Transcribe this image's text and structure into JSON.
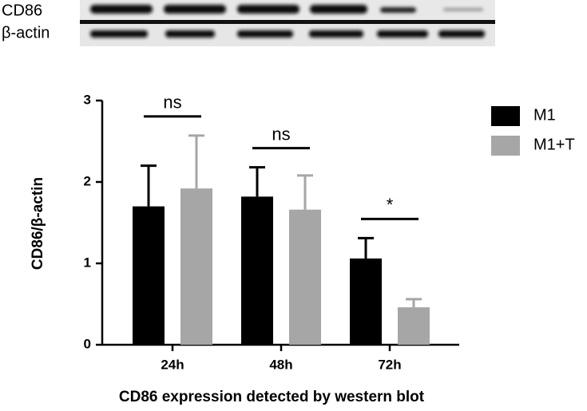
{
  "blot": {
    "rows": [
      "CD86",
      "β-actin"
    ]
  },
  "chart_data": {
    "type": "bar",
    "x_label": "CD86 expression detected by western blot",
    "y_label": "CD86/β-actin",
    "categories": [
      "24h",
      "48h",
      "72h"
    ],
    "series": [
      {
        "name": "M1",
        "color": "#000000",
        "values": [
          1.7,
          1.82,
          1.06
        ],
        "errors": [
          0.5,
          0.36,
          0.25
        ]
      },
      {
        "name": "M1+T",
        "color": "#a6a6a6",
        "values": [
          1.92,
          1.66,
          0.46
        ],
        "errors": [
          0.65,
          0.42,
          0.1
        ]
      }
    ],
    "annotations": [
      "ns",
      "ns",
      "*"
    ],
    "ylim": [
      0,
      3
    ],
    "yticks": [
      0,
      1,
      2,
      3
    ],
    "legend": "upper right"
  }
}
